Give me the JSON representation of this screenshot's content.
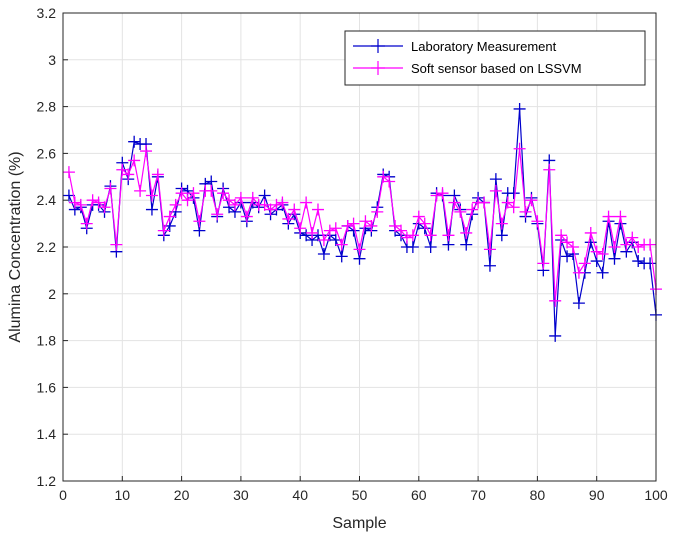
{
  "chart_data": {
    "type": "line",
    "xlabel": "Sample",
    "ylabel": "Alumina Concentration (%)",
    "xlim": [
      0,
      100
    ],
    "ylim": [
      1.2,
      3.2
    ],
    "xticks": [
      "0",
      "10",
      "20",
      "30",
      "40",
      "50",
      "60",
      "70",
      "80",
      "90",
      "100"
    ],
    "yticks": [
      "1.2",
      "1.4",
      "1.6",
      "1.8",
      "2",
      "2.2",
      "2.4",
      "2.6",
      "2.8",
      "3",
      "3.2"
    ],
    "grid": true,
    "legend_position": "top-right",
    "x": [
      1,
      2,
      3,
      4,
      5,
      6,
      7,
      8,
      9,
      10,
      11,
      12,
      13,
      14,
      15,
      16,
      17,
      18,
      19,
      20,
      21,
      22,
      23,
      24,
      25,
      26,
      27,
      28,
      29,
      30,
      31,
      32,
      33,
      34,
      35,
      36,
      37,
      38,
      39,
      40,
      41,
      42,
      43,
      44,
      45,
      46,
      47,
      48,
      49,
      50,
      51,
      52,
      53,
      54,
      55,
      56,
      57,
      58,
      59,
      60,
      61,
      62,
      63,
      64,
      65,
      66,
      67,
      68,
      69,
      70,
      71,
      72,
      73,
      74,
      75,
      76,
      77,
      78,
      79,
      80,
      81,
      82,
      83,
      84,
      85,
      86,
      87,
      88,
      89,
      90,
      91,
      92,
      93,
      94,
      95,
      96,
      97,
      98,
      99,
      100
    ],
    "series": [
      {
        "name": "Laboratory Measurement",
        "color": "#0000cc",
        "marker": "plus",
        "values": [
          2.42,
          2.36,
          2.37,
          2.28,
          2.38,
          2.38,
          2.35,
          2.46,
          2.18,
          2.56,
          2.49,
          2.65,
          2.64,
          2.64,
          2.36,
          2.5,
          2.25,
          2.29,
          2.35,
          2.45,
          2.44,
          2.41,
          2.27,
          2.47,
          2.48,
          2.33,
          2.45,
          2.37,
          2.35,
          2.39,
          2.31,
          2.39,
          2.37,
          2.42,
          2.34,
          2.36,
          2.38,
          2.3,
          2.34,
          2.26,
          2.25,
          2.23,
          2.25,
          2.17,
          2.25,
          2.23,
          2.16,
          2.29,
          2.27,
          2.15,
          2.28,
          2.27,
          2.37,
          2.51,
          2.5,
          2.27,
          2.25,
          2.2,
          2.2,
          2.3,
          2.28,
          2.2,
          2.43,
          2.42,
          2.21,
          2.42,
          2.36,
          2.21,
          2.34,
          2.41,
          2.39,
          2.12,
          2.49,
          2.25,
          2.43,
          2.43,
          2.79,
          2.33,
          2.41,
          2.3,
          2.1,
          2.57,
          1.82,
          2.23,
          2.16,
          2.17,
          1.96,
          2.09,
          2.22,
          2.14,
          2.09,
          2.31,
          2.15,
          2.3,
          2.18,
          2.22,
          2.14,
          2.13,
          2.13,
          1.91
        ]
      },
      {
        "name": "Soft sensor based on LSSVM",
        "color": "#ff00ff",
        "marker": "plus",
        "values": [
          2.52,
          2.39,
          2.38,
          2.3,
          2.4,
          2.39,
          2.37,
          2.45,
          2.21,
          2.53,
          2.51,
          2.57,
          2.44,
          2.61,
          2.42,
          2.51,
          2.27,
          2.33,
          2.38,
          2.43,
          2.4,
          2.43,
          2.31,
          2.44,
          2.44,
          2.34,
          2.43,
          2.4,
          2.38,
          2.41,
          2.33,
          2.41,
          2.38,
          2.38,
          2.36,
          2.38,
          2.39,
          2.32,
          2.36,
          2.28,
          2.39,
          2.26,
          2.36,
          2.23,
          2.27,
          2.28,
          2.21,
          2.29,
          2.3,
          2.19,
          2.31,
          2.29,
          2.35,
          2.5,
          2.48,
          2.29,
          2.27,
          2.24,
          2.25,
          2.33,
          2.3,
          2.25,
          2.42,
          2.43,
          2.25,
          2.39,
          2.35,
          2.26,
          2.36,
          2.39,
          2.39,
          2.19,
          2.44,
          2.3,
          2.39,
          2.37,
          2.62,
          2.35,
          2.4,
          2.31,
          2.13,
          2.53,
          1.97,
          2.25,
          2.22,
          2.2,
          2.09,
          2.13,
          2.26,
          2.18,
          2.17,
          2.33,
          2.2,
          2.33,
          2.21,
          2.24,
          2.2,
          2.21,
          2.21,
          2.02
        ]
      }
    ]
  }
}
